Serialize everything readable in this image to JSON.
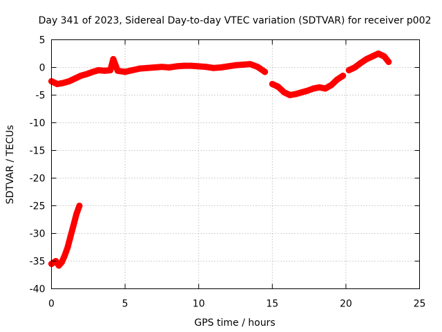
{
  "chart_data": {
    "type": "line",
    "title": "Day 341 of 2023, Sidereal Day-to-day VTEC variation (SDTVAR) for receiver p002",
    "xlabel": "GPS time / hours",
    "ylabel": "SDTVAR / TECUs",
    "xlim": [
      0,
      25
    ],
    "ylim": [
      -40,
      5
    ],
    "xticks": [
      0,
      5,
      10,
      15,
      20,
      25
    ],
    "xtick_labels": [
      "0",
      "5",
      "10",
      "15",
      "20",
      "25"
    ],
    "yticks": [
      5,
      0,
      -5,
      -10,
      -15,
      -20,
      -25,
      -30,
      -35,
      -40
    ],
    "ytick_labels": [
      "5",
      "0",
      "-5",
      "-10",
      "-15",
      "-20",
      "-25",
      "-30",
      "-35",
      "-40"
    ],
    "grid": true,
    "series": [
      {
        "name": "satellite arc A",
        "color": "#ff0000",
        "x": [
          0.0,
          0.3,
          0.5,
          0.7,
          0.9,
          1.1,
          1.3,
          1.5,
          1.7,
          1.9
        ],
        "y": [
          -35.5,
          -35.0,
          -35.8,
          -35.2,
          -34.0,
          -32.5,
          -30.5,
          -28.5,
          -26.5,
          -25.0
        ]
      },
      {
        "name": "satellite arc B",
        "color": "#ff0000",
        "x": [
          0.0,
          0.4,
          0.8,
          1.2,
          1.6,
          2.0,
          2.4,
          2.8,
          3.2,
          3.6,
          4.0,
          4.2,
          4.5,
          5.0,
          5.5,
          6.0,
          6.5,
          7.0,
          7.5,
          8.0,
          8.5,
          9.0,
          9.5,
          10.0,
          10.5,
          11.0,
          11.5,
          12.0,
          12.5,
          13.0,
          13.5,
          14.0,
          14.5
        ],
        "y": [
          -2.5,
          -3.0,
          -2.8,
          -2.5,
          -2.0,
          -1.5,
          -1.2,
          -0.8,
          -0.5,
          -0.6,
          -0.5,
          1.5,
          -0.6,
          -0.8,
          -0.5,
          -0.2,
          -0.1,
          0.0,
          0.1,
          0.0,
          0.2,
          0.3,
          0.3,
          0.2,
          0.1,
          -0.1,
          0.0,
          0.2,
          0.4,
          0.5,
          0.6,
          0.1,
          -0.8
        ]
      },
      {
        "name": "satellite arc C",
        "color": "#ff0000",
        "x": [
          15.0,
          15.4,
          15.8,
          16.2,
          16.6,
          17.0,
          17.4,
          17.8,
          18.2,
          18.6,
          19.0,
          19.4,
          19.8
        ],
        "y": [
          -3.0,
          -3.5,
          -4.5,
          -5.0,
          -4.8,
          -4.5,
          -4.2,
          -3.8,
          -3.6,
          -3.8,
          -3.2,
          -2.2,
          -1.5
        ]
      },
      {
        "name": "satellite arc D",
        "color": "#ff0000",
        "x": [
          20.2,
          20.6,
          21.0,
          21.4,
          21.8,
          22.2,
          22.6,
          22.9
        ],
        "y": [
          -0.5,
          0.0,
          0.8,
          1.5,
          2.0,
          2.5,
          2.0,
          1.0
        ]
      }
    ]
  }
}
